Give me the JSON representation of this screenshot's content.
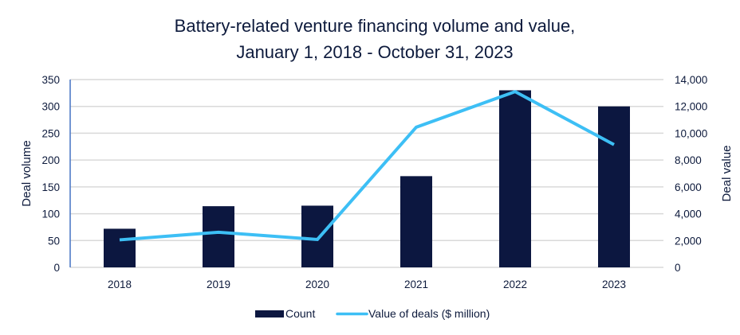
{
  "chart_data": {
    "type": "bar",
    "title_lines": [
      "Battery-related venture financing volume and value,",
      "January 1, 2018 - October 31, 2023"
    ],
    "categories": [
      "2018",
      "2019",
      "2020",
      "2021",
      "2022",
      "2023"
    ],
    "series": [
      {
        "name": "Count",
        "type": "bar",
        "axis": "left",
        "color": "#0c1740",
        "values": [
          72,
          114,
          115,
          170,
          330,
          300
        ]
      },
      {
        "name": "Value of deals ($ million)",
        "type": "line",
        "axis": "right",
        "color": "#3dbff5",
        "values": [
          2050,
          2620,
          2080,
          10450,
          13100,
          9150
        ]
      }
    ],
    "xlabel": "",
    "ylabel_left": "Deal volume",
    "ylabel_right": "Deal value",
    "ylim_left": [
      0,
      350
    ],
    "ylim_right": [
      0,
      14000
    ],
    "yticks_left": [
      "0",
      "50",
      "100",
      "150",
      "200",
      "250",
      "300",
      "350"
    ],
    "yticks_right": [
      "0",
      "2,000",
      "4,000",
      "6,000",
      "8,000",
      "10,000",
      "12,000",
      "14,000"
    ],
    "grid": true,
    "legend_position": "bottom",
    "legend": [
      {
        "label": "Count",
        "kind": "bar",
        "color": "#0c1740"
      },
      {
        "label": "Value of deals ($ million)",
        "kind": "line",
        "color": "#3dbff5"
      }
    ],
    "left_axis_color": "#4472c4"
  }
}
